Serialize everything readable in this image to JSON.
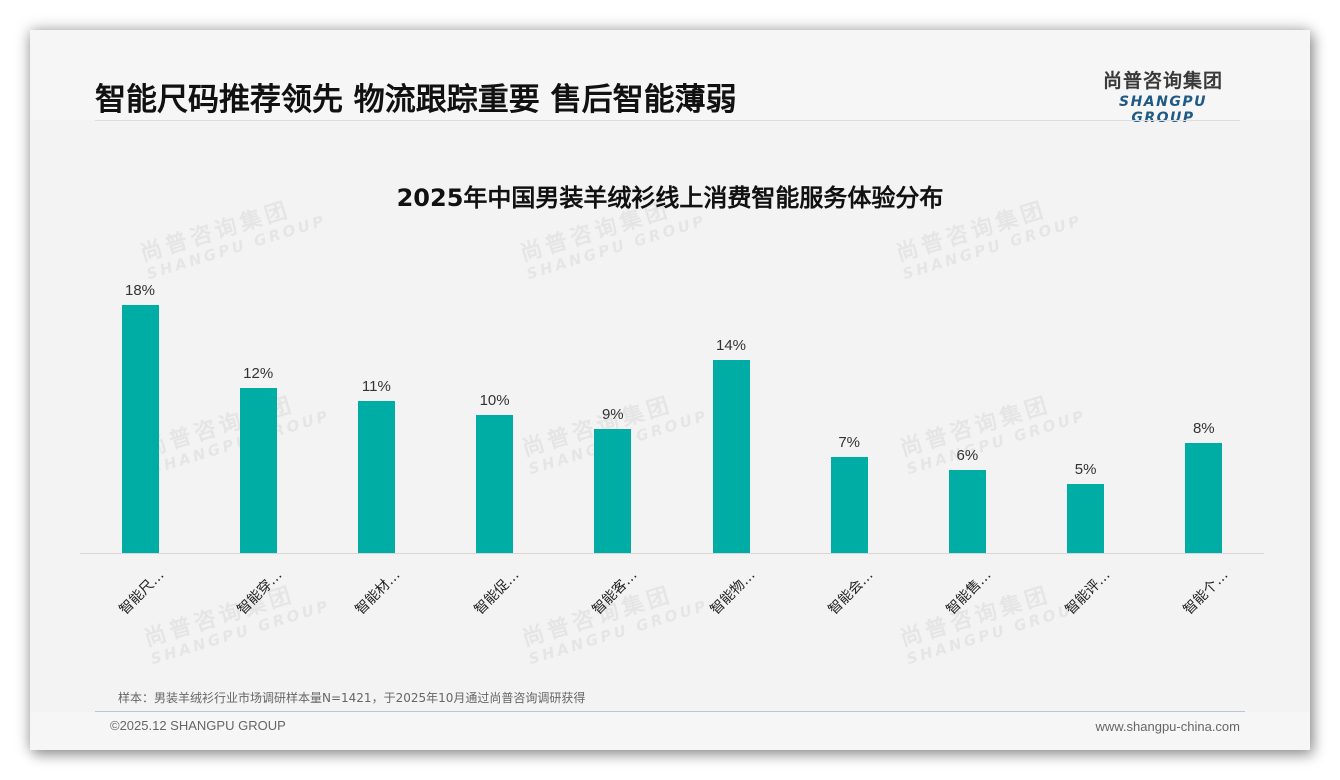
{
  "header": {
    "headline": "智能尺码推荐领先 物流跟踪重要 售后智能薄弱",
    "logo_cn": "尚普咨询集团",
    "logo_en": "SHANGPU GROUP"
  },
  "watermark": {
    "cn": "尚普咨询集团",
    "en": "SHANGPU GROUP"
  },
  "chart_data": {
    "type": "bar",
    "title": "2025年中国男装羊绒衫线上消费智能服务体验分布",
    "categories": [
      "智能尺…",
      "智能穿…",
      "智能材…",
      "智能促…",
      "智能客…",
      "智能物…",
      "智能会…",
      "智能售…",
      "智能评…",
      "智能个…"
    ],
    "values": [
      18,
      12,
      11,
      10,
      9,
      14,
      7,
      6,
      5,
      8
    ],
    "value_labels": [
      "18%",
      "12%",
      "11%",
      "10%",
      "9%",
      "14%",
      "7%",
      "6%",
      "5%",
      "8%"
    ],
    "unit": "%",
    "xlabel": "",
    "ylabel": "",
    "ylim": [
      0,
      18
    ],
    "grid": false,
    "legend": "none",
    "bar_color": "#00ada5"
  },
  "footer": {
    "note": "样本：男装羊绒衫行业市场调研样本量N=1421，于2025年10月通过尚普咨询调研获得",
    "copyright": "©2025.12 SHANGPU GROUP",
    "website": "www.shangpu-china.com"
  }
}
